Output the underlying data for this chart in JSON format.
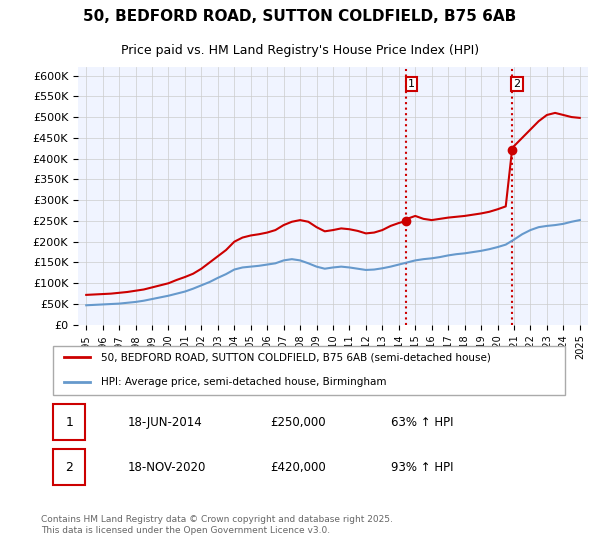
{
  "title": "50, BEDFORD ROAD, SUTTON COLDFIELD, B75 6AB",
  "subtitle": "Price paid vs. HM Land Registry's House Price Index (HPI)",
  "red_line_label": "50, BEDFORD ROAD, SUTTON COLDFIELD, B75 6AB (semi-detached house)",
  "blue_line_label": "HPI: Average price, semi-detached house, Birmingham",
  "annotation1_date": "18-JUN-2014",
  "annotation1_price": "£250,000",
  "annotation1_hpi": "63% ↑ HPI",
  "annotation2_date": "18-NOV-2020",
  "annotation2_price": "£420,000",
  "annotation2_hpi": "93% ↑ HPI",
  "footnote": "Contains HM Land Registry data © Crown copyright and database right 2025.\nThis data is licensed under the Open Government Licence v3.0.",
  "vline1_x": 2014.46,
  "vline2_x": 2020.88,
  "marker1_x": 2014.46,
  "marker1_y": 250000,
  "marker2_x": 2020.88,
  "marker2_y": 420000,
  "ylim": [
    0,
    620000
  ],
  "xlim": [
    1994.5,
    2025.5
  ],
  "background_color": "#f0f4ff",
  "red_color": "#cc0000",
  "blue_color": "#6699cc",
  "vline_color": "#cc0000",
  "grid_color": "#cccccc",
  "red_line_data_x": [
    1995.0,
    1995.5,
    1996.0,
    1996.5,
    1997.0,
    1997.5,
    1998.0,
    1998.5,
    1999.0,
    1999.5,
    2000.0,
    2000.5,
    2001.0,
    2001.5,
    2002.0,
    2002.5,
    2003.0,
    2003.5,
    2004.0,
    2004.5,
    2005.0,
    2005.5,
    2006.0,
    2006.5,
    2007.0,
    2007.5,
    2008.0,
    2008.5,
    2009.0,
    2009.5,
    2010.0,
    2010.5,
    2011.0,
    2011.5,
    2012.0,
    2012.5,
    2013.0,
    2013.5,
    2014.0,
    2014.46,
    2014.5,
    2015.0,
    2015.5,
    2016.0,
    2016.5,
    2017.0,
    2017.5,
    2018.0,
    2018.5,
    2019.0,
    2019.5,
    2020.0,
    2020.5,
    2020.88,
    2021.0,
    2021.5,
    2022.0,
    2022.5,
    2023.0,
    2023.5,
    2024.0,
    2024.5,
    2025.0
  ],
  "red_line_data_y": [
    72000,
    73000,
    74000,
    75000,
    77000,
    79000,
    82000,
    85000,
    90000,
    95000,
    100000,
    108000,
    115000,
    123000,
    135000,
    150000,
    165000,
    180000,
    200000,
    210000,
    215000,
    218000,
    222000,
    228000,
    240000,
    248000,
    252000,
    248000,
    235000,
    225000,
    228000,
    232000,
    230000,
    226000,
    220000,
    222000,
    228000,
    238000,
    245000,
    250000,
    255000,
    262000,
    255000,
    252000,
    255000,
    258000,
    260000,
    262000,
    265000,
    268000,
    272000,
    278000,
    285000,
    420000,
    430000,
    450000,
    470000,
    490000,
    505000,
    510000,
    505000,
    500000,
    498000
  ],
  "blue_line_data_x": [
    1995.0,
    1995.5,
    1996.0,
    1996.5,
    1997.0,
    1997.5,
    1998.0,
    1998.5,
    1999.0,
    1999.5,
    2000.0,
    2000.5,
    2001.0,
    2001.5,
    2002.0,
    2002.5,
    2003.0,
    2003.5,
    2004.0,
    2004.5,
    2005.0,
    2005.5,
    2006.0,
    2006.5,
    2007.0,
    2007.5,
    2008.0,
    2008.5,
    2009.0,
    2009.5,
    2010.0,
    2010.5,
    2011.0,
    2011.5,
    2012.0,
    2012.5,
    2013.0,
    2013.5,
    2014.0,
    2014.5,
    2015.0,
    2015.5,
    2016.0,
    2016.5,
    2017.0,
    2017.5,
    2018.0,
    2018.5,
    2019.0,
    2019.5,
    2020.0,
    2020.5,
    2021.0,
    2021.5,
    2022.0,
    2022.5,
    2023.0,
    2023.5,
    2024.0,
    2024.5,
    2025.0
  ],
  "blue_line_data_y": [
    47000,
    48000,
    49000,
    50000,
    51000,
    53000,
    55000,
    58000,
    62000,
    66000,
    70000,
    75000,
    80000,
    87000,
    95000,
    103000,
    113000,
    122000,
    133000,
    138000,
    140000,
    142000,
    145000,
    148000,
    155000,
    158000,
    155000,
    148000,
    140000,
    135000,
    138000,
    140000,
    138000,
    135000,
    132000,
    133000,
    136000,
    140000,
    145000,
    150000,
    155000,
    158000,
    160000,
    163000,
    167000,
    170000,
    172000,
    175000,
    178000,
    182000,
    187000,
    193000,
    205000,
    218000,
    228000,
    235000,
    238000,
    240000,
    243000,
    248000,
    252000
  ]
}
